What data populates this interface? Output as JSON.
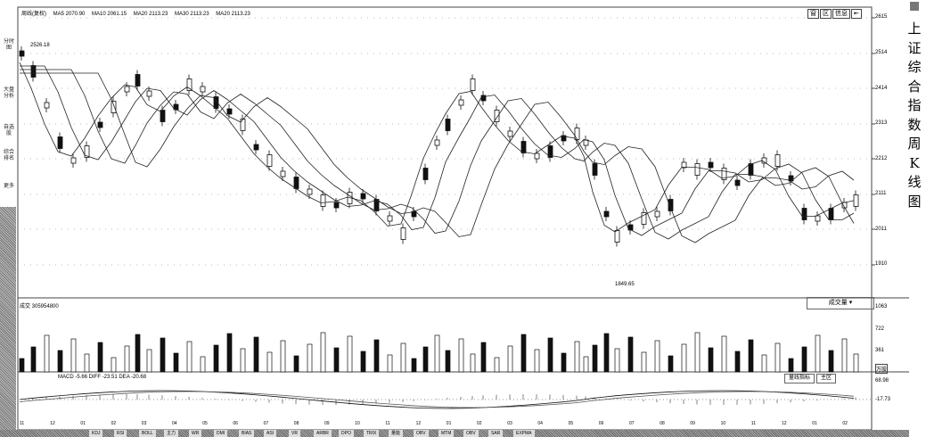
{
  "title_vertical": "上证综合指数周K线图",
  "legend": {
    "header": "周线(复权)",
    "ma5": "MA5 2070.90",
    "ma10": "MA10 2061.15",
    "ma20": "MA20 2113.23",
    "ma30": "MA30 2113.23",
    "ma20b": "MA20 2113.23"
  },
  "window_buttons": [
    "窗",
    "区",
    "信息",
    "⇤"
  ],
  "side_labels": [
    "分时图",
    "大盘分析",
    "自选股",
    "综合排名",
    "更多"
  ],
  "price_axis": [
    "2615",
    "2514",
    "2414",
    "2313",
    "2212",
    "2111",
    "2011",
    "1910"
  ],
  "annotations": {
    "high": "2526.18",
    "low": "1849.65"
  },
  "volume": {
    "title": "成交 305954800",
    "selector": "成交量",
    "axis": [
      "1063",
      "722",
      "361",
      "万股"
    ]
  },
  "macd": {
    "legend": "MACD -5.66 DIFF -23.51 DEA -20.68",
    "buttons": [
      "量线指标",
      "主区"
    ],
    "axis": [
      "68.98",
      "-17.73"
    ]
  },
  "dates": [
    "11",
    "12",
    "01",
    "02",
    "03",
    "04",
    "05",
    "06",
    "07",
    "08",
    "09",
    "10",
    "11",
    "12",
    "01",
    "02",
    "03",
    "04",
    "05",
    "06",
    "07",
    "08",
    "09",
    "10",
    "11",
    "12",
    "01",
    "02"
  ],
  "bottom_tabs": [
    "KDJ",
    "RSI",
    "BOLL",
    "主力",
    "WR",
    "DMI",
    "BIAS",
    "ASI",
    "VR",
    "ARBR",
    "DPO",
    "TRIX",
    "量能",
    "OBV",
    "MTM",
    "OBV",
    "SAR",
    "EXPMA"
  ],
  "colors": {
    "up": "#ffffff",
    "down": "#111111",
    "line": "#222222"
  }
}
